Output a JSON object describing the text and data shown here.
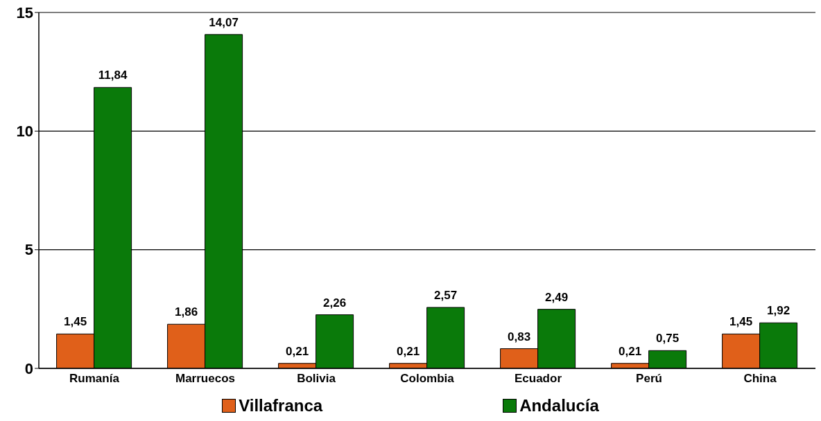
{
  "chart_data": {
    "type": "bar",
    "categories": [
      "Rumanía",
      "Marruecos",
      "Bolivia",
      "Colombia",
      "Ecuador",
      "Perú",
      "China"
    ],
    "series": [
      {
        "name": "Villafranca",
        "color": "#e0601a",
        "values": [
          1.45,
          1.86,
          0.21,
          0.21,
          0.83,
          0.21,
          1.45
        ],
        "value_labels": [
          "1,45",
          "1,86",
          "0,21",
          "0,21",
          "0,83",
          "0,21",
          "1,45"
        ]
      },
      {
        "name": "Andalucía",
        "color": "#0a7a0a",
        "values": [
          11.84,
          14.07,
          2.26,
          2.57,
          2.49,
          0.75,
          1.92
        ],
        "value_labels": [
          "11,84",
          "14,07",
          "2,26",
          "2,57",
          "2,49",
          "0,75",
          "1,92"
        ]
      }
    ],
    "ylim": [
      0,
      15
    ],
    "yticks": [
      0,
      5,
      10,
      15
    ],
    "grid": "y",
    "legend": "bottom"
  }
}
